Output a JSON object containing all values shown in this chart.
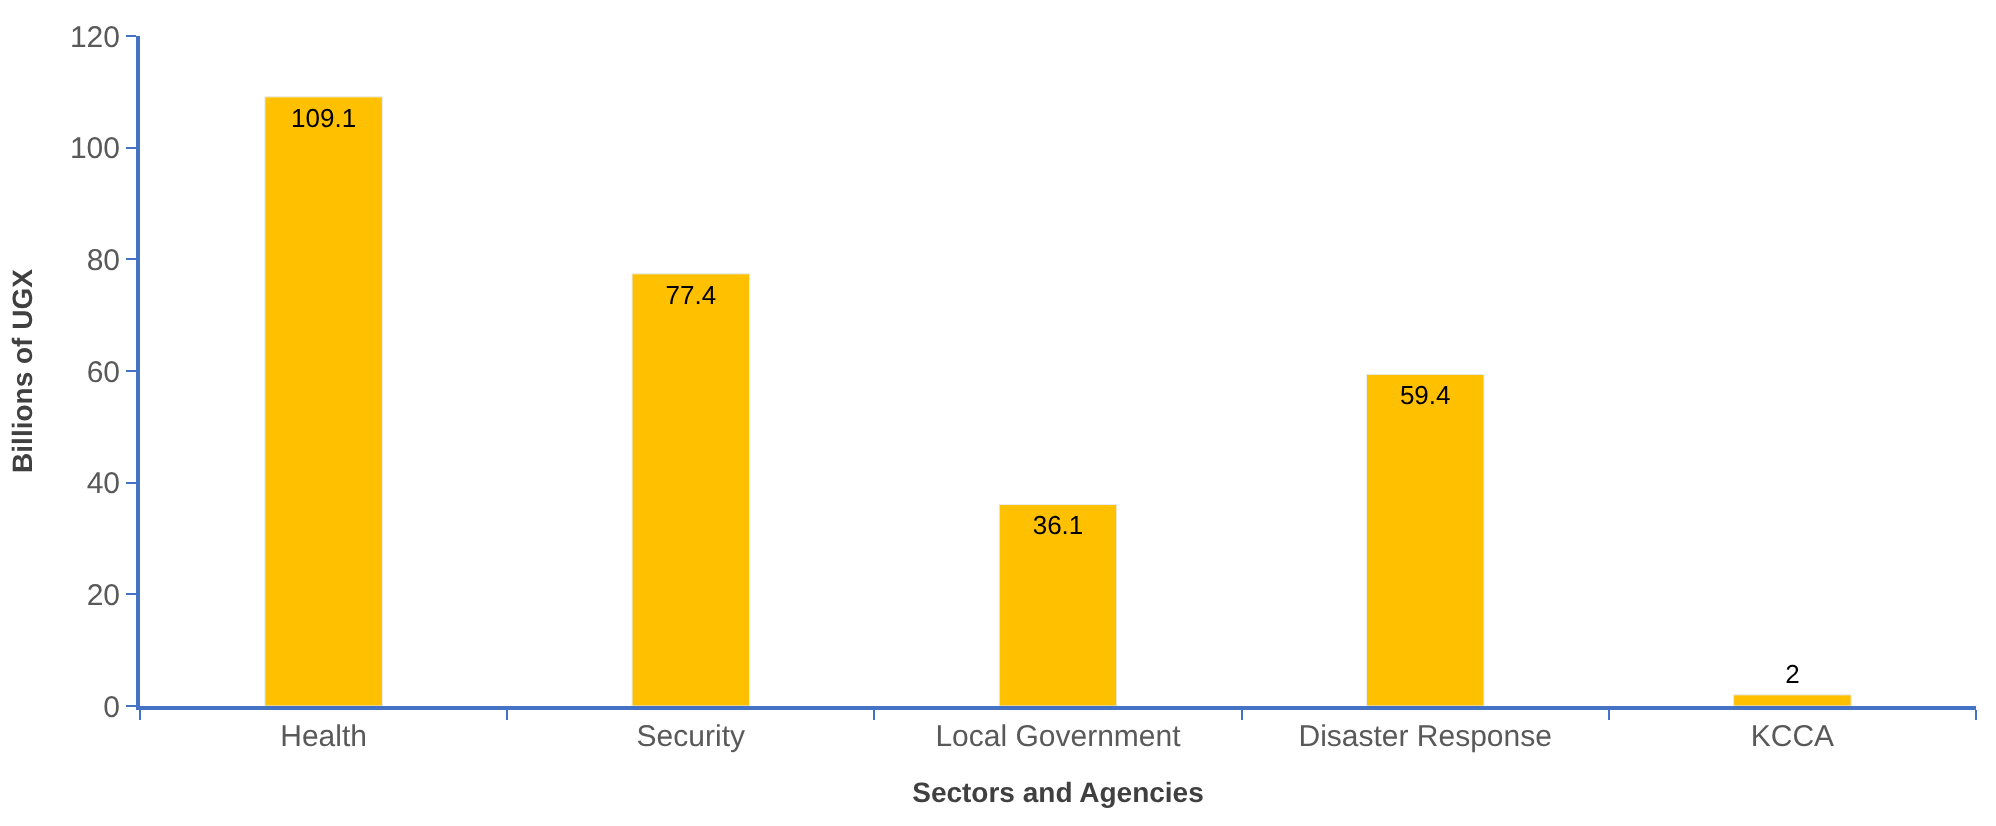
{
  "chart_data": {
    "type": "bar",
    "xlabel": "Sectors and Agencies",
    "ylabel": "Billions of UGX",
    "categories": [
      "Health",
      "Security",
      "Local Government",
      "Disaster Response",
      "KCCA"
    ],
    "values": [
      109.1,
      77.4,
      36.1,
      59.4,
      2
    ],
    "color": "#ffc000",
    "ylim": [
      0,
      120
    ],
    "yticks": [
      0,
      20,
      40,
      60,
      80,
      100,
      120
    ],
    "data_labels": true
  }
}
